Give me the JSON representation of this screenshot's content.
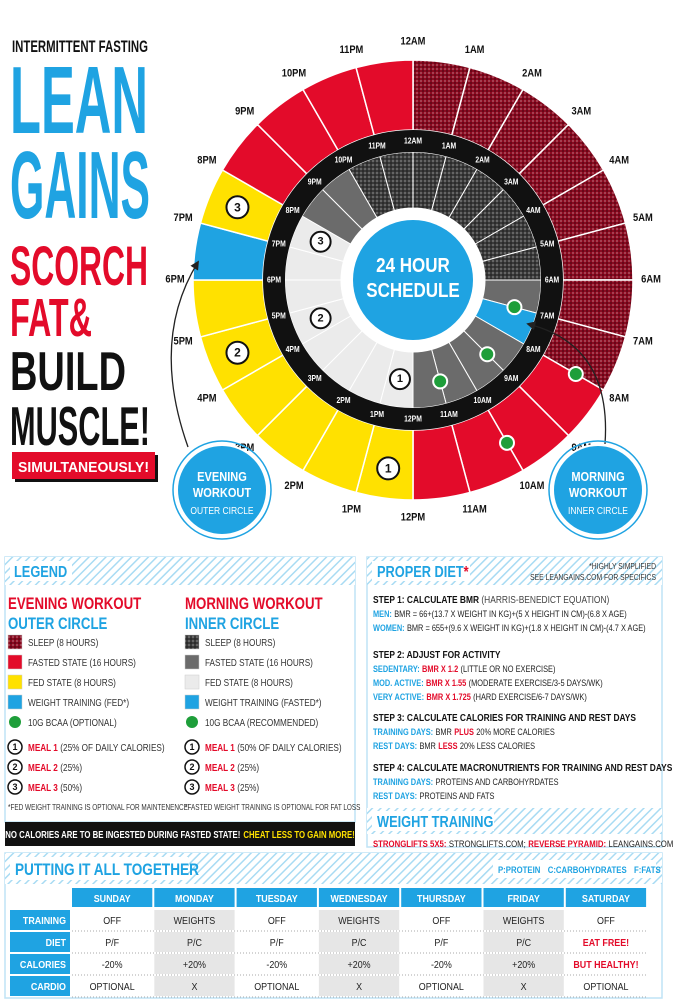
{
  "title": {
    "kicker": "INTERMITTENT FASTING",
    "lines": [
      "LEAN",
      "GAINS",
      "SCORCH",
      "FAT&",
      "BUILD",
      "MUSCLE!"
    ],
    "tag": "SIMULTANEOUSLY!"
  },
  "clock": {
    "center": [
      "24 HOUR",
      "SCHEDULE"
    ],
    "hours": [
      "12AM",
      "1AM",
      "2AM",
      "3AM",
      "4AM",
      "5AM",
      "6AM",
      "7AM",
      "8AM",
      "9AM",
      "10AM",
      "11AM",
      "12PM",
      "1PM",
      "2PM",
      "3PM",
      "4PM",
      "5PM",
      "6PM",
      "7PM",
      "8PM",
      "9PM",
      "10PM",
      "11PM"
    ],
    "meal_markers": [
      "1",
      "2",
      "3"
    ],
    "evening_bubble": [
      "EVENING",
      "WORKOUT",
      "OUTER CIRCLE"
    ],
    "morning_bubble": [
      "MORNING",
      "WORKOUT",
      "INNER CIRCLE"
    ]
  },
  "legend": {
    "title": "LEGEND",
    "columns": [
      {
        "heading": "EVENING WORKOUT",
        "subheading": "OUTER CIRCLE",
        "items": [
          {
            "label": "SLEEP (8 HOURS)",
            "color": "#8a0a20",
            "pattern": true
          },
          {
            "label": "FASTED STATE (16 HOURS)",
            "color": "#e30b2a"
          },
          {
            "label": "FED STATE (8 HOURS)",
            "color": "#ffe100"
          },
          {
            "label": "WEIGHT TRAINING (FED*)",
            "color": "#1fa3e2"
          },
          {
            "label": "10G BCAA (OPTIONAL)",
            "color": "#1e9e3a",
            "shape": "dot"
          }
        ],
        "meals": [
          {
            "num": "1",
            "name": "MEAL 1",
            "detail": "(25% OF DAILY CALORIES)"
          },
          {
            "num": "2",
            "name": "MEAL 2",
            "detail": "(25%)"
          },
          {
            "num": "3",
            "name": "MEAL 3",
            "detail": "(50%)"
          }
        ],
        "footnote": "*FED WEIGHT TRAINING IS OPTIONAL FOR MAINTENENCE"
      },
      {
        "heading": "MORNING WORKOUT",
        "subheading": "INNER CIRCLE",
        "items": [
          {
            "label": "SLEEP (8 HOURS)",
            "color": "#3a3a3a",
            "pattern": true
          },
          {
            "label": "FASTED STATE (16 HOURS)",
            "color": "#6b6b6b"
          },
          {
            "label": "FED STATE (8 HOURS)",
            "color": "#ebebeb"
          },
          {
            "label": "WEIGHT TRAINING (FASTED*)",
            "color": "#1fa3e2"
          },
          {
            "label": "10G BCAA (RECOMMENDED)",
            "color": "#1e9e3a",
            "shape": "dot"
          }
        ],
        "meals": [
          {
            "num": "1",
            "name": "MEAL 1",
            "detail": "(50% OF DAILY CALORIES)"
          },
          {
            "num": "2",
            "name": "MEAL 2",
            "detail": "(25%)"
          },
          {
            "num": "3",
            "name": "MEAL 3",
            "detail": "(25%)"
          }
        ],
        "footnote": "*FASTED WEIGHT TRAINING IS OPTIONAL FOR FAT LOSS"
      }
    ]
  },
  "warning": {
    "text": "NO CALORIES ARE TO BE INGESTED DURING FASTED STATE!",
    "highlight": "CHEAT LESS TO GAIN MORE!"
  },
  "diet": {
    "title": "PROPER DIET",
    "title_mark": "*",
    "note": [
      "*HIGHLY SIMPLIFIED",
      "SEE LEANGAINS.COM FOR SPECIFICS"
    ],
    "steps": [
      {
        "title": "STEP 1: CALCULATE BMR",
        "title_note": "(HARRIS-BENEDICT EQUATION)",
        "lines": [
          [
            {
              "text": "MEN:",
              "color": "#1fa3e2"
            },
            {
              "text": "BMR = 66+(13.7 X WEIGHT IN KG)+(5 X HEIGHT IN CM)-(6.8 X AGE)"
            }
          ],
          [
            {
              "text": "WOMEN:",
              "color": "#1fa3e2"
            },
            {
              "text": "BMR = 655+(9.6 X WEIGHT IN KG)+(1.8 X HEIGHT IN CM)-(4.7 X AGE)"
            }
          ]
        ]
      },
      {
        "title": "STEP 2: ADJUST FOR ACTIVITY",
        "lines": [
          [
            {
              "text": "SEDENTARY:",
              "color": "#1fa3e2"
            },
            {
              "text": "BMR X 1.2",
              "color": "#e30b2a"
            },
            {
              "text": "(LITTLE OR NO EXERCISE)"
            }
          ],
          [
            {
              "text": "MOD. ACTIVE:",
              "color": "#1fa3e2"
            },
            {
              "text": "BMR X 1.55",
              "color": "#e30b2a"
            },
            {
              "text": "(MODERATE EXERCISE/3-5 DAYS/WK)"
            }
          ],
          [
            {
              "text": "VERY ACTIVE:",
              "color": "#1fa3e2"
            },
            {
              "text": "BMR X 1.725",
              "color": "#e30b2a"
            },
            {
              "text": "(HARD EXERCISE/6-7 DAYS/WK)"
            }
          ]
        ]
      },
      {
        "title": "STEP 3: CALCULATE CALORIES FOR TRAINING AND REST DAYS",
        "lines": [
          [
            {
              "text": "TRAINING DAYS:",
              "color": "#1fa3e2"
            },
            {
              "text": "BMR"
            },
            {
              "text": "PLUS",
              "color": "#e30b2a"
            },
            {
              "text": "20% MORE CALORIES"
            }
          ],
          [
            {
              "text": "REST DAYS:",
              "color": "#1fa3e2"
            },
            {
              "text": "BMR"
            },
            {
              "text": "LESS",
              "color": "#e30b2a"
            },
            {
              "text": "20% LESS CALORIES"
            }
          ]
        ]
      },
      {
        "title": "STEP 4: CALCULATE MACRONUTRIENTS FOR TRAINING AND REST DAYS",
        "lines": [
          [
            {
              "text": "TRAINING DAYS:",
              "color": "#1fa3e2"
            },
            {
              "text": "PROTEINS AND CARBOHYRDATES"
            }
          ],
          [
            {
              "text": "REST DAYS:",
              "color": "#1fa3e2"
            },
            {
              "text": "PROTEINS AND FATS"
            }
          ]
        ]
      }
    ]
  },
  "weight_training": {
    "title": "WEIGHT TRAINING",
    "parts": [
      {
        "text": "STRONGLIFTS 5X5:",
        "color": "#e30b2a"
      },
      {
        "text": "STRONGLIFTS.COM;"
      },
      {
        "text": "REVERSE PYRAMID:",
        "color": "#e30b2a"
      },
      {
        "text": "LEANGAINS.COM"
      }
    ]
  },
  "plan": {
    "title": "PUTTING IT ALL TOGETHER",
    "key": [
      "P:PROTEIN",
      "C:CARBOHYDRATES",
      "F:FATS"
    ],
    "days": [
      "SUNDAY",
      "MONDAY",
      "TUESDAY",
      "WEDNESDAY",
      "THURSDAY",
      "FRIDAY",
      "SATURDAY"
    ],
    "rows": [
      {
        "label": "TRAINING",
        "cells": [
          "OFF",
          "WEIGHTS",
          "OFF",
          "WEIGHTS",
          "OFF",
          "WEIGHTS",
          "OFF"
        ]
      },
      {
        "label": "DIET",
        "cells": [
          "P/F",
          "P/C",
          "P/F",
          "P/C",
          "P/F",
          "P/C",
          {
            "text": "EAT FREE!",
            "color": "#e30b2a"
          }
        ]
      },
      {
        "label": "CALORIES",
        "cells": [
          "-20%",
          "+20%",
          "-20%",
          "+20%",
          "-20%",
          "+20%",
          {
            "text": "BUT HEALTHY!",
            "color": "#e30b2a"
          }
        ]
      },
      {
        "label": "CARDIO",
        "cells": [
          "OPTIONAL",
          "X",
          "OPTIONAL",
          "X",
          "OPTIONAL",
          "X",
          "OPTIONAL"
        ]
      }
    ]
  }
}
